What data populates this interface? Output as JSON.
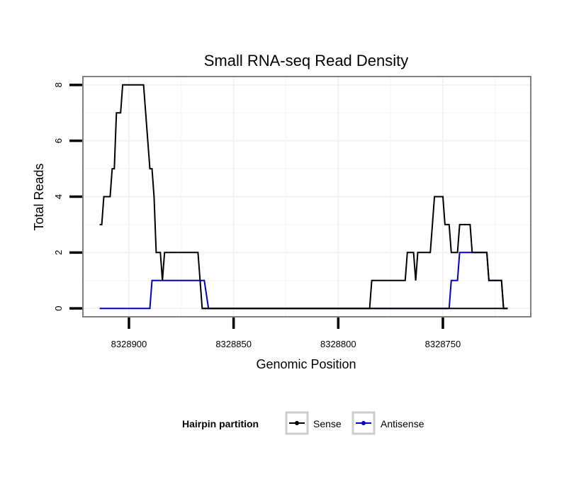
{
  "chart_data": {
    "type": "line",
    "title": "Small RNA-seq Read Density",
    "xlabel": "Genomic Position",
    "ylabel": "Total Reads",
    "x_reversed": true,
    "xlim": [
      8328922,
      8328708
    ],
    "ylim": [
      -0.3,
      8.3
    ],
    "x_ticks": [
      8328900,
      8328850,
      8328800,
      8328750
    ],
    "x_tick_labels": [
      "8328900",
      "8328850",
      "8328800",
      "8328750"
    ],
    "y_ticks": [
      0,
      2,
      4,
      6,
      8
    ],
    "y_tick_labels": [
      "0",
      "2",
      "4",
      "6",
      "8"
    ],
    "grid": true,
    "legend": {
      "title": "Hairpin partition",
      "position": "bottom",
      "entries": [
        "Sense",
        "Antisense"
      ]
    },
    "series": [
      {
        "name": "Sense",
        "color": "#000000",
        "points": [
          [
            8328914,
            3
          ],
          [
            8328913,
            3
          ],
          [
            8328912,
            4
          ],
          [
            8328909,
            4
          ],
          [
            8328908,
            5
          ],
          [
            8328907,
            5
          ],
          [
            8328906,
            7
          ],
          [
            8328904,
            7
          ],
          [
            8328903,
            8
          ],
          [
            8328893,
            8
          ],
          [
            8328890,
            5
          ],
          [
            8328889,
            5
          ],
          [
            8328888,
            4
          ],
          [
            8328887,
            2
          ],
          [
            8328885,
            2
          ],
          [
            8328884,
            1
          ],
          [
            8328883,
            2
          ],
          [
            8328867,
            2
          ],
          [
            8328865,
            0
          ],
          [
            8328719,
            0
          ]
        ]
      },
      {
        "name": "Antisense",
        "color": "#0000cc",
        "points": [
          [
            8328914,
            0
          ],
          [
            8328890,
            0
          ],
          [
            8328889,
            1
          ],
          [
            8328864,
            1
          ],
          [
            8328862,
            0
          ],
          [
            8328747,
            0
          ],
          [
            8328746,
            1
          ],
          [
            8328743,
            1
          ],
          [
            8328742,
            2
          ],
          [
            8328729,
            2
          ],
          [
            8328728,
            1
          ],
          [
            8328722,
            1
          ],
          [
            8328721,
            0
          ],
          [
            8328719,
            0
          ]
        ]
      }
    ],
    "sense_right_segment": [
      [
        8328865,
        0
      ],
      [
        8328785,
        0
      ],
      [
        8328784,
        1
      ],
      [
        8328768,
        1
      ],
      [
        8328767,
        2
      ],
      [
        8328764,
        2
      ],
      [
        8328763,
        1
      ],
      [
        8328762,
        2
      ],
      [
        8328756,
        2
      ],
      [
        8328755,
        3
      ],
      [
        8328754,
        4
      ],
      [
        8328750,
        4
      ],
      [
        8328749,
        3
      ],
      [
        8328747,
        3
      ],
      [
        8328746,
        2
      ],
      [
        8328743,
        2
      ],
      [
        8328742,
        3
      ],
      [
        8328737,
        3
      ],
      [
        8328736,
        2
      ],
      [
        8328729,
        2
      ],
      [
        8328728,
        1
      ],
      [
        8328722,
        1
      ],
      [
        8328721,
        0
      ],
      [
        8328719,
        0
      ]
    ]
  }
}
